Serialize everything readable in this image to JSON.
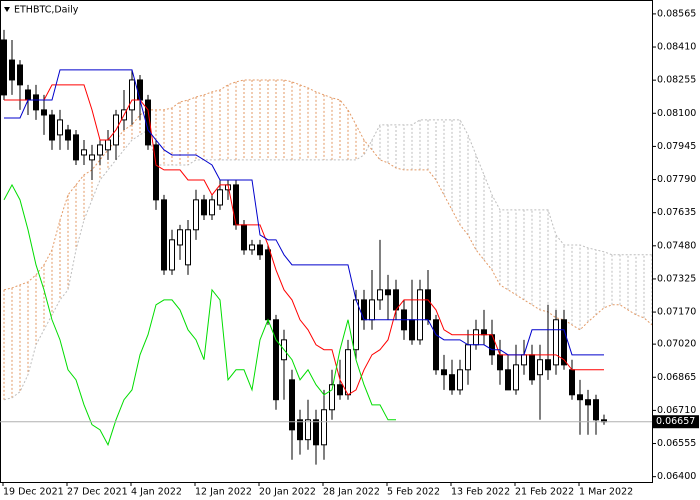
{
  "chart_data": {
    "type": "candlestick",
    "title": "ETHBTC,Daily",
    "categories": [
      "19 Dec 2021",
      null,
      null,
      null,
      null,
      null,
      null,
      null,
      "27 Dec 2021",
      null,
      null,
      null,
      null,
      null,
      null,
      null,
      "4 Jan 2022",
      null,
      null,
      null,
      null,
      null,
      null,
      null,
      "12 Jan 2022",
      null,
      null,
      null,
      null,
      null,
      null,
      null,
      "20 Jan 2022",
      null,
      null,
      null,
      null,
      null,
      null,
      null,
      "28 Jan 2022",
      null,
      null,
      null,
      null,
      null,
      null,
      null,
      "5 Feb 2022",
      null,
      null,
      null,
      null,
      null,
      null,
      null,
      "13 Feb 2022",
      null,
      null,
      null,
      null,
      null,
      null,
      null,
      "21 Feb 2022",
      null,
      null,
      null,
      null,
      null,
      null,
      null,
      "1 Mar 2022",
      null,
      null,
      null,
      null,
      null,
      null,
      null,
      null,
      null
    ],
    "open": [
      0.08443,
      0.08349,
      0.08326,
      0.08209,
      0.08186,
      0.08116,
      0.08092,
      0.07999,
      0.08022,
      0.07999,
      0.07905,
      0.07882,
      0.07905,
      0.07929,
      0.07952,
      0.08069,
      0.08116,
      0.08256,
      0.08162,
      0.07952,
      0.07695,
      0.07367,
      0.07484,
      0.07391,
      0.07555,
      0.07695,
      0.07625,
      0.07671,
      0.07742,
      0.07765,
      0.07578,
      0.07461,
      0.07484,
      0.07461,
      0.07134,
      0.06947,
      0.06853,
      0.06666,
      0.06573,
      0.06666,
      0.06549,
      0.06713,
      0.0683,
      0.06783,
      0.06994,
      0.07227,
      0.07134,
      0.07227,
      0.07274,
      0.07274,
      0.0718,
      0.07134,
      0.0704,
      0.07274,
      0.07134,
      0.069,
      0.06877,
      0.06806,
      0.069,
      0.07017,
      0.07087,
      0.07064,
      0.0697,
      0.069,
      0.06806,
      0.06923,
      0.0697,
      0.06877,
      0.06947,
      0.06923,
      0.07134,
      0.069,
      0.06783,
      0.0676,
      0.0676,
      0.06666,
      null,
      null,
      null,
      null,
      null,
      null
    ],
    "high": [
      0.0849,
      0.08443,
      0.08349,
      0.08233,
      0.08233,
      0.08186,
      0.08116,
      0.08116,
      0.08046,
      0.08022,
      0.07975,
      0.07952,
      0.07975,
      0.08022,
      0.08116,
      0.08209,
      0.08303,
      0.08279,
      0.08186,
      0.07975,
      0.07718,
      0.07555,
      0.07578,
      0.07601,
      0.07742,
      0.07718,
      0.07718,
      0.07788,
      0.07788,
      0.07788,
      0.07601,
      0.07508,
      0.07508,
      0.07484,
      0.07157,
      0.07087,
      0.069,
      0.06713,
      0.0676,
      0.06713,
      0.06806,
      0.069,
      0.06947,
      0.0704,
      0.07274,
      0.07274,
      0.07367,
      0.07508,
      0.07344,
      0.07321,
      0.07227,
      0.07321,
      0.07321,
      0.07367,
      0.07157,
      0.0697,
      0.06947,
      0.06947,
      0.07087,
      0.07134,
      0.0718,
      0.07134,
      0.0704,
      0.0697,
      0.07017,
      0.0704,
      0.07017,
      0.07017,
      0.07204,
      0.0718,
      0.0718,
      0.06947,
      0.06853,
      0.06806,
      0.06783,
      0.0669,
      null,
      null,
      null,
      null,
      null,
      null
    ],
    "low": [
      0.08162,
      0.08186,
      0.08116,
      0.08092,
      0.08069,
      0.07999,
      0.07929,
      0.07929,
      0.07929,
      0.07858,
      0.07858,
      0.07788,
      0.07858,
      0.07882,
      0.07882,
      0.08022,
      0.08046,
      0.08069,
      0.07929,
      0.07648,
      0.07344,
      0.07344,
      0.07414,
      0.07344,
      0.07508,
      0.07601,
      0.07601,
      0.07648,
      0.07695,
      0.07555,
      0.07438,
      0.07438,
      0.07414,
      0.0711,
      0.06713,
      0.0676,
      0.06479,
      0.06503,
      0.06526,
      0.06456,
      0.06479,
      0.06666,
      0.0676,
      0.0676,
      0.06947,
      0.07087,
      0.07087,
      0.0718,
      0.07134,
      0.07134,
      0.0704,
      0.07017,
      0.07017,
      0.0711,
      0.06877,
      0.06806,
      0.06783,
      0.06783,
      0.0683,
      0.06994,
      0.07017,
      0.06923,
      0.0683,
      0.06806,
      0.06783,
      0.06877,
      0.0683,
      0.06666,
      0.06853,
      0.06877,
      0.069,
      0.0676,
      0.06596,
      0.06596,
      0.06596,
      0.06643,
      null,
      null,
      null,
      null,
      null,
      null
    ],
    "close": [
      0.08186,
      0.08256,
      0.08233,
      0.08162,
      0.08116,
      0.08092,
      0.07975,
      0.08069,
      0.07975,
      0.07882,
      0.07929,
      0.07905,
      0.07952,
      0.07975,
      0.08092,
      0.08116,
      0.08256,
      0.08162,
      0.07952,
      0.07695,
      0.07367,
      0.07508,
      0.07555,
      0.07555,
      0.07695,
      0.07625,
      0.07695,
      0.07742,
      0.07765,
      0.07578,
      0.07461,
      0.07484,
      0.07438,
      0.07134,
      0.0676,
      0.0704,
      0.06619,
      0.06573,
      0.06666,
      0.06549,
      0.06713,
      0.0683,
      0.06783,
      0.06994,
      0.07227,
      0.07134,
      0.07227,
      0.07274,
      0.07251,
      0.0718,
      0.07087,
      0.0704,
      0.07274,
      0.07134,
      0.069,
      0.06877,
      0.06806,
      0.069,
      0.07017,
      0.07087,
      0.07064,
      0.0697,
      0.069,
      0.06806,
      0.06923,
      0.0697,
      0.06853,
      0.06947,
      0.069,
      0.07134,
      0.06923,
      0.06783,
      0.0676,
      0.06736,
      0.06666,
      0.06657,
      null,
      null,
      null,
      null,
      null,
      null
    ],
    "ichimoku": {
      "tenkan_sen": {
        "color": "#ff0000",
        "values": [
          0.08162,
          0.08162,
          0.08162,
          0.08162,
          0.08162,
          0.08162,
          0.08233,
          0.08233,
          0.08233,
          0.08233,
          0.08233,
          0.08116,
          0.07975,
          0.07975,
          0.08022,
          0.08092,
          0.08162,
          0.08162,
          0.08116,
          0.07858,
          0.07835,
          0.07835,
          0.07835,
          0.07788,
          0.07788,
          0.07788,
          0.07718,
          0.07765,
          0.07765,
          0.07578,
          0.07578,
          0.07578,
          0.07578,
          0.07484,
          0.07367,
          0.07274,
          0.07227,
          0.07134,
          0.07087,
          0.07017,
          0.06994,
          0.06994,
          0.06853,
          0.06783,
          0.06806,
          0.069,
          0.0697,
          0.06994,
          0.0704,
          0.0718,
          0.07227,
          0.07227,
          0.07227,
          0.07227,
          0.0718,
          0.07087,
          0.07064,
          0.07064,
          0.07064,
          0.07064,
          0.07064,
          0.07064,
          0.0697,
          0.0697,
          0.0697,
          0.0697,
          0.0697,
          0.0697,
          0.0697,
          0.0697,
          0.06947,
          0.069,
          0.069,
          0.069,
          0.069,
          0.069,
          null,
          null,
          null,
          null,
          null,
          null
        ]
      },
      "kijun_sen": {
        "color": "#0000cc",
        "values": [
          0.08078,
          0.08078,
          0.08078,
          0.08162,
          0.08162,
          0.08162,
          0.08162,
          0.08303,
          0.08303,
          0.08303,
          0.08303,
          0.08303,
          0.08303,
          0.08303,
          0.08303,
          0.08303,
          0.08303,
          0.08162,
          0.08022,
          0.07975,
          0.07929,
          0.07905,
          0.07905,
          0.07905,
          0.07905,
          0.07882,
          0.07858,
          0.07788,
          0.07788,
          0.07788,
          0.07788,
          0.07788,
          0.07531,
          0.07508,
          0.07508,
          0.07438,
          0.07391,
          0.07391,
          0.07391,
          0.07391,
          0.07391,
          0.07391,
          0.07391,
          0.07391,
          0.07227,
          0.07134,
          0.07134,
          0.07134,
          0.07134,
          0.07134,
          0.07134,
          0.07134,
          0.07134,
          0.07134,
          0.07064,
          0.0704,
          0.0704,
          0.0704,
          0.07017,
          0.07017,
          0.07017,
          0.06994,
          0.06994,
          0.0697,
          0.0697,
          0.0697,
          0.07087,
          0.07087,
          0.07087,
          0.07087,
          0.07087,
          0.0697,
          0.0697,
          0.0697,
          0.0697,
          0.0697,
          null,
          null,
          null,
          null,
          null,
          null
        ]
      },
      "chikou_span": {
        "color": "#00dd00",
        "values": [
          0.07695,
          0.07765,
          0.07695,
          0.07555,
          0.07391,
          0.07274,
          0.07134,
          0.0704,
          0.069,
          0.06853,
          0.06736,
          0.06643,
          0.06619,
          0.06549,
          0.06666,
          0.0676,
          0.06806,
          0.0697,
          0.07064,
          0.07204,
          0.07227,
          0.07227,
          0.0718,
          0.07087,
          0.0704,
          0.06947,
          0.07274,
          0.07227,
          0.06853,
          0.069,
          0.069,
          0.06806,
          0.0704,
          0.07134,
          0.0704,
          0.06994,
          0.06947,
          0.06853,
          0.069,
          0.0683,
          0.06783,
          0.06806,
          0.06994,
          0.07134,
          0.06947,
          0.0683,
          0.06736,
          0.06736,
          0.06666,
          0.06666,
          null,
          null,
          null,
          null,
          null,
          null,
          null,
          null,
          null,
          null,
          null,
          null,
          null,
          null,
          null,
          null,
          null,
          null,
          null,
          null,
          null,
          null,
          null,
          null,
          null,
          null,
          null,
          null,
          null,
          null,
          null,
          null
        ]
      },
      "senkou_span_a": {
        "color": "#e39a66",
        "values": [
          0.07274,
          0.07283,
          0.07297,
          0.07311,
          0.07344,
          0.07391,
          0.07461,
          0.07601,
          0.07718,
          0.07765,
          0.07812,
          0.07835,
          0.07882,
          0.07929,
          0.07975,
          0.08022,
          0.08046,
          0.08092,
          0.08116,
          0.08116,
          0.08116,
          0.08125,
          0.08153,
          0.08162,
          0.08176,
          0.08186,
          0.082,
          0.08209,
          0.08233,
          0.08247,
          0.08256,
          0.08256,
          0.08256,
          0.08256,
          0.08256,
          0.08256,
          0.08247,
          0.08233,
          0.08219,
          0.082,
          0.08186,
          0.08172,
          0.08162,
          0.08116,
          0.08046,
          0.07975,
          0.07929,
          0.07882,
          0.07868,
          0.07844,
          0.07835,
          0.07835,
          0.07835,
          0.07835,
          0.07788,
          0.07718,
          0.07648,
          0.07578,
          0.07531,
          0.07461,
          0.07414,
          0.07367,
          0.07297,
          0.07274,
          0.07251,
          0.07227,
          0.07204,
          0.0718,
          0.07171,
          0.07143,
          0.07134,
          0.0711,
          0.07087,
          0.07124,
          0.07157,
          0.0719,
          0.07204,
          0.07204,
          0.0718,
          0.07157,
          0.07143,
          0.0711
        ]
      },
      "senkou_span_b": {
        "color": "#bdbdbd",
        "values": [
          0.0676,
          0.06769,
          0.06797,
          0.06877,
          0.07017,
          0.07087,
          0.07157,
          0.07227,
          0.07274,
          0.07461,
          0.07601,
          0.07695,
          0.07788,
          0.07835,
          0.07882,
          0.07929,
          0.07975,
          0.07999,
          0.08022,
          0.07858,
          0.07858,
          0.07858,
          0.07858,
          0.07858,
          0.07882,
          0.07882,
          0.07882,
          0.07882,
          0.07882,
          0.07882,
          0.07882,
          0.07882,
          0.07882,
          0.07882,
          0.07882,
          0.07882,
          0.07882,
          0.07882,
          0.07882,
          0.07882,
          0.07882,
          0.07882,
          0.07882,
          0.07882,
          0.07882,
          0.07905,
          0.07975,
          0.08046,
          0.08046,
          0.08046,
          0.08046,
          0.08046,
          0.08069,
          0.08069,
          0.08069,
          0.08069,
          0.08069,
          0.08069,
          0.07999,
          0.07905,
          0.07812,
          0.07718,
          0.07648,
          0.07648,
          0.07648,
          0.07648,
          0.07648,
          0.07648,
          0.07648,
          0.07531,
          0.07484,
          0.07484,
          0.07484,
          0.0747,
          0.07461,
          0.07452,
          0.07438,
          0.07438,
          0.07438,
          0.07438,
          0.07438,
          0.07438
        ]
      }
    },
    "ylim": [
      0.06375,
      0.0863
    ],
    "yticks": [
      0.08565,
      {
        "value": 0.0841,
        "label": "0.08410"
      },
      0.08255,
      {
        "value": 0.081,
        "label": "0.08100"
      },
      0.07945,
      {
        "value": 0.0779,
        "label": "0.07790"
      },
      0.07635,
      {
        "value": 0.0748,
        "label": "0.07480"
      },
      0.07325,
      {
        "value": 0.0717,
        "label": "0.07170"
      },
      {
        "value": 0.0702,
        "label": "0.07020"
      },
      0.06865,
      {
        "value": 0.0671,
        "label": "0.06710"
      },
      0.06555,
      {
        "value": 0.064,
        "label": "0.06400"
      }
    ],
    "up_color": "#ffffff",
    "down_color": "#000000"
  }
}
